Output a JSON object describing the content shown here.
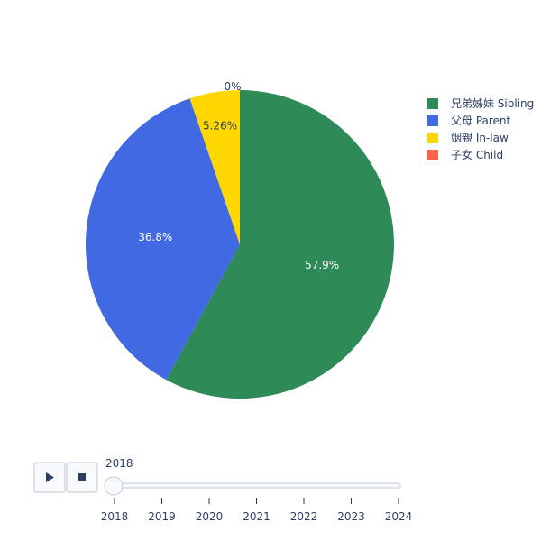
{
  "chart_data": {
    "type": "pie",
    "title": "",
    "labels": [
      "兄弟姊妹 Sibling",
      "父母 Parent",
      "姻親 In-law",
      "子女 Child"
    ],
    "values": [
      57.9,
      36.8,
      5.26,
      0
    ],
    "value_labels": [
      "57.9%",
      "36.8%",
      "5.26%",
      "0%"
    ],
    "colors": [
      "#2e8b57",
      "#4169e1",
      "#ffd700",
      "#ff6347"
    ],
    "legend": {
      "position": "top-right",
      "entries": [
        "兄弟姊妹 Sibling",
        "父母 Parent",
        "姻親 In-law",
        "子女 Child"
      ]
    }
  },
  "animation": {
    "play_icon": "play-icon",
    "stop_icon": "stop-icon",
    "current_label": "2018",
    "current_value": "2018",
    "steps": [
      "2018",
      "2019",
      "2020",
      "2021",
      "2022",
      "2023",
      "2024"
    ]
  }
}
